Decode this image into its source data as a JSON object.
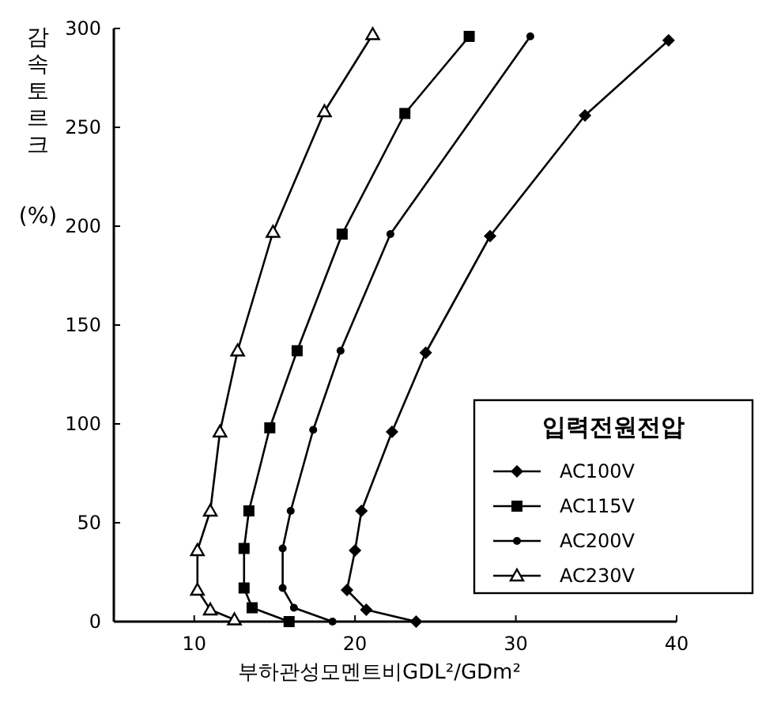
{
  "chart_data": {
    "type": "line",
    "xlabel": "부하관성모멘트비GDL²/GDm²",
    "ylabel": "감속토르크 (%)",
    "legend_title": "입력전원전압",
    "legend": "right",
    "grid": false,
    "xlim": [
      5,
      40
    ],
    "xticks": [
      10,
      20,
      30,
      40
    ],
    "ylim": [
      0,
      300
    ],
    "yticks": [
      0,
      50,
      100,
      150,
      200,
      250,
      300
    ],
    "series": [
      {
        "name": "AC100V",
        "color": "#000000",
        "marker": "diamond",
        "x": [
          23.8,
          20.7,
          19.5,
          20.0,
          20.4,
          22.3,
          24.4,
          28.4,
          34.3,
          39.5
        ],
        "values": [
          0,
          6,
          16,
          36,
          56,
          96,
          136,
          195,
          256,
          294
        ]
      },
      {
        "name": "AC115V",
        "color": "#000000",
        "marker": "square",
        "x": [
          15.9,
          13.6,
          13.1,
          13.1,
          13.4,
          14.7,
          16.4,
          19.2,
          23.1,
          27.1
        ],
        "values": [
          0,
          7,
          17,
          37,
          56,
          98,
          137,
          196,
          257,
          296
        ]
      },
      {
        "name": "AC200V",
        "color": "#000000",
        "marker": "circle",
        "x": [
          18.6,
          16.2,
          15.5,
          15.5,
          16.0,
          17.4,
          19.1,
          22.2,
          30.9
        ],
        "values": [
          0,
          7,
          17,
          37,
          56,
          97,
          137,
          196,
          296
        ]
      },
      {
        "name": "AC230V",
        "color": "#000000",
        "marker": "triangle",
        "x": [
          12.5,
          11.0,
          10.2,
          10.2,
          11.0,
          11.6,
          12.7,
          14.9,
          18.1,
          21.1
        ],
        "values": [
          1,
          6,
          16,
          36,
          56,
          96,
          137,
          197,
          258,
          297
        ]
      }
    ]
  }
}
